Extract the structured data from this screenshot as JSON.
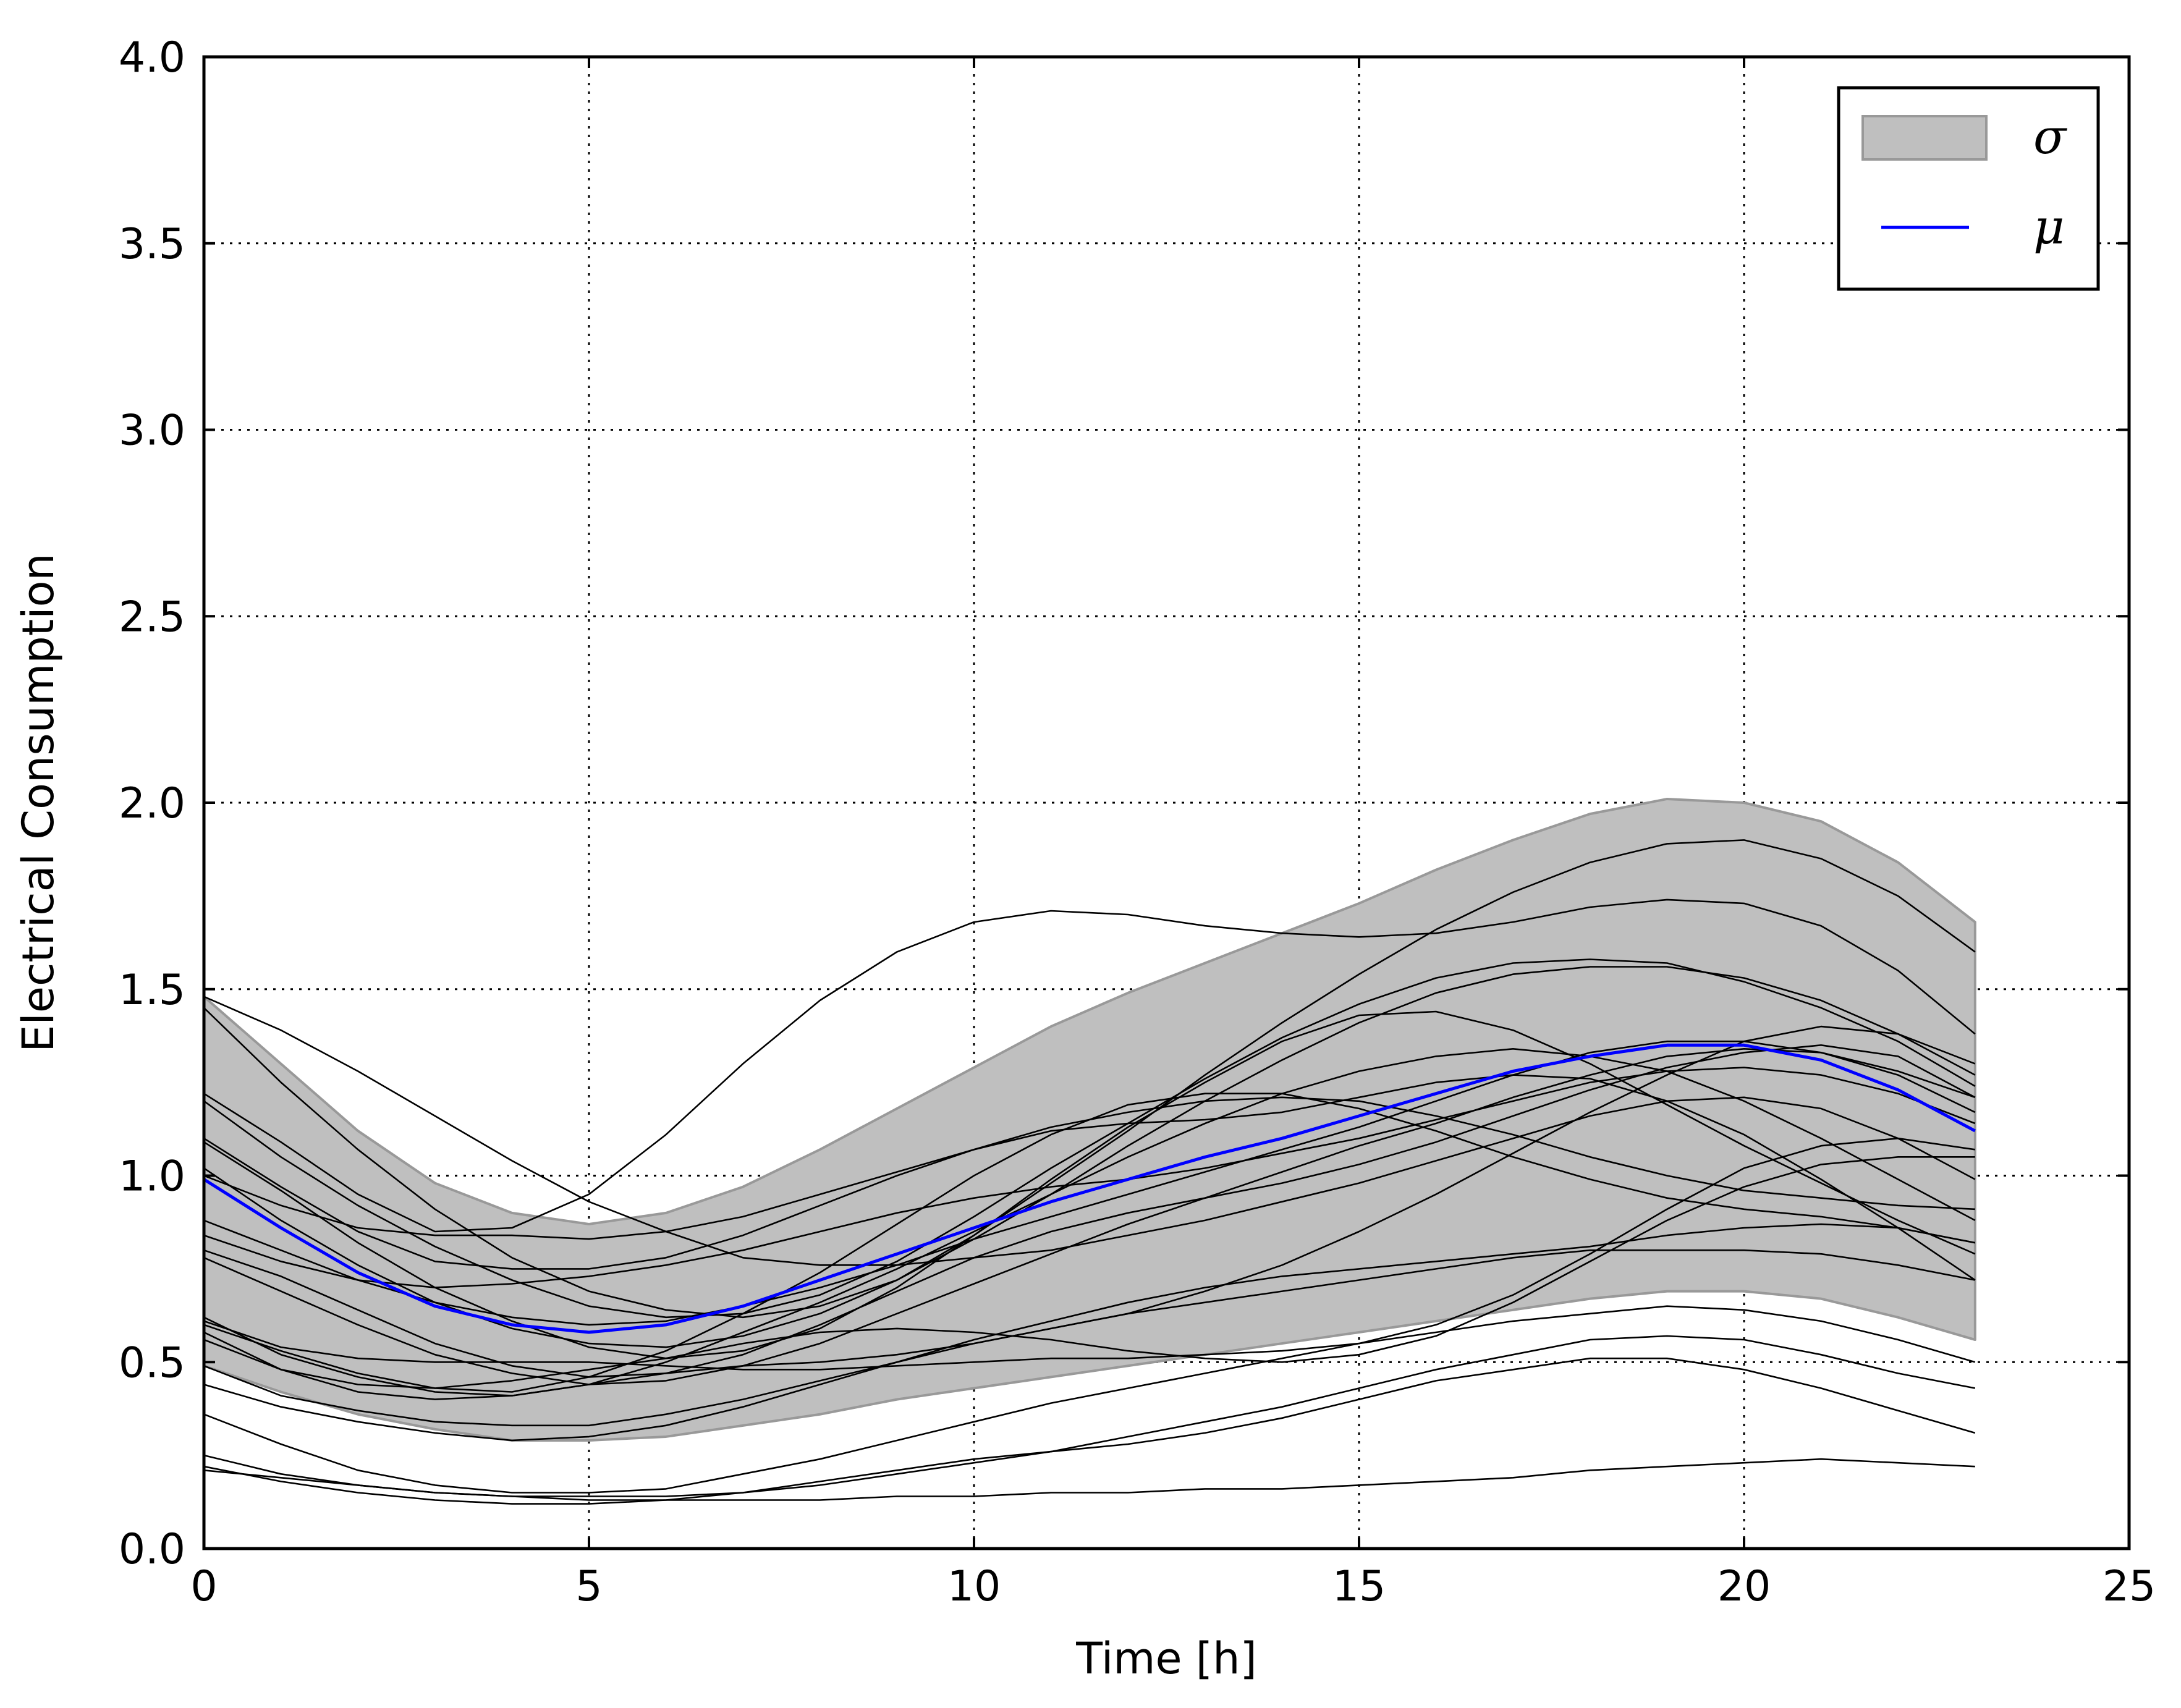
{
  "chart_data": {
    "type": "line",
    "xlabel": "Time [h]",
    "ylabel": "Electrical Consumption",
    "xlim": [
      0,
      25
    ],
    "ylim": [
      0,
      4.0
    ],
    "xticks": [
      "0",
      "5",
      "10",
      "15",
      "20",
      "25"
    ],
    "yticks": [
      "0.0",
      "0.5",
      "1.0",
      "1.5",
      "2.0",
      "2.5",
      "3.0",
      "3.5",
      "4.0"
    ],
    "grid": true,
    "legend_position": "top-right",
    "legend": [
      {
        "label": "σ",
        "kind": "band",
        "color": "#bfbfbf"
      },
      {
        "label": "μ",
        "kind": "line",
        "color": "#0000ff"
      }
    ],
    "x": [
      0,
      1,
      2,
      3,
      4,
      5,
      6,
      7,
      8,
      9,
      10,
      11,
      12,
      13,
      14,
      15,
      16,
      17,
      18,
      19,
      20,
      21,
      22,
      23
    ],
    "band": {
      "name": "σ",
      "upper": [
        1.48,
        1.3,
        1.12,
        0.98,
        0.9,
        0.87,
        0.9,
        0.97,
        1.07,
        1.18,
        1.29,
        1.4,
        1.49,
        1.57,
        1.65,
        1.73,
        1.82,
        1.9,
        1.97,
        2.01,
        2.0,
        1.95,
        1.84,
        1.68
      ],
      "lower": [
        0.49,
        0.42,
        0.36,
        0.32,
        0.29,
        0.29,
        0.3,
        0.33,
        0.36,
        0.4,
        0.43,
        0.46,
        0.49,
        0.52,
        0.55,
        0.58,
        0.61,
        0.64,
        0.67,
        0.69,
        0.69,
        0.67,
        0.62,
        0.56
      ]
    },
    "series": [
      {
        "name": "μ",
        "color": "#0000ff",
        "values": [
          0.99,
          0.86,
          0.74,
          0.65,
          0.6,
          0.58,
          0.6,
          0.65,
          0.72,
          0.79,
          0.86,
          0.93,
          0.99,
          1.05,
          1.1,
          1.16,
          1.22,
          1.28,
          1.32,
          1.35,
          1.35,
          1.31,
          1.23,
          1.12
        ]
      },
      {
        "color": "#000000",
        "values": [
          1.48,
          1.39,
          1.28,
          1.16,
          1.04,
          0.93,
          0.85,
          0.78,
          0.76,
          0.76,
          0.78,
          0.8,
          0.84,
          0.88,
          0.93,
          0.98,
          1.04,
          1.1,
          1.16,
          1.2,
          1.21,
          1.18,
          1.1,
          0.99
        ]
      },
      {
        "color": "#000000",
        "values": [
          1.45,
          1.25,
          1.07,
          0.91,
          0.78,
          0.69,
          0.64,
          0.62,
          0.65,
          0.72,
          0.84,
          0.98,
          1.12,
          1.27,
          1.41,
          1.54,
          1.66,
          1.76,
          1.84,
          1.89,
          1.9,
          1.85,
          1.75,
          1.6
        ]
      },
      {
        "color": "#000000",
        "values": [
          1.22,
          1.09,
          0.95,
          0.85,
          0.86,
          0.95,
          1.11,
          1.3,
          1.47,
          1.6,
          1.68,
          1.71,
          1.7,
          1.67,
          1.65,
          1.64,
          1.65,
          1.68,
          1.72,
          1.74,
          1.73,
          1.67,
          1.55,
          1.38
        ]
      },
      {
        "color": "#000000",
        "values": [
          1.2,
          1.05,
          0.92,
          0.81,
          0.72,
          0.65,
          0.62,
          0.63,
          0.68,
          0.77,
          0.89,
          1.02,
          1.14,
          1.26,
          1.37,
          1.46,
          1.53,
          1.57,
          1.58,
          1.57,
          1.52,
          1.45,
          1.36,
          1.24
        ]
      },
      {
        "color": "#000000",
        "values": [
          1.1,
          0.97,
          0.85,
          0.77,
          0.75,
          0.75,
          0.78,
          0.84,
          0.92,
          1.0,
          1.07,
          1.12,
          1.14,
          1.15,
          1.17,
          1.21,
          1.25,
          1.27,
          1.26,
          1.2,
          1.11,
          0.99,
          0.86,
          0.72
        ]
      },
      {
        "color": "#000000",
        "values": [
          1.09,
          0.96,
          0.82,
          0.7,
          0.61,
          0.54,
          0.51,
          0.53,
          0.59,
          0.7,
          0.84,
          0.99,
          1.13,
          1.25,
          1.36,
          1.43,
          1.44,
          1.39,
          1.3,
          1.19,
          1.08,
          0.98,
          0.88,
          0.79
        ]
      },
      {
        "color": "#000000",
        "values": [
          1.02,
          0.88,
          0.76,
          0.66,
          0.59,
          0.55,
          0.54,
          0.57,
          0.63,
          0.72,
          0.83,
          0.95,
          1.08,
          1.2,
          1.31,
          1.41,
          1.49,
          1.54,
          1.56,
          1.56,
          1.53,
          1.47,
          1.38,
          1.27
        ]
      },
      {
        "color": "#000000",
        "values": [
          1.0,
          0.92,
          0.86,
          0.84,
          0.84,
          0.83,
          0.85,
          0.89,
          0.95,
          1.01,
          1.07,
          1.13,
          1.17,
          1.2,
          1.21,
          1.2,
          1.16,
          1.11,
          1.05,
          1.0,
          0.96,
          0.94,
          0.92,
          0.91
        ]
      },
      {
        "color": "#000000",
        "values": [
          0.88,
          0.8,
          0.72,
          0.66,
          0.62,
          0.6,
          0.61,
          0.65,
          0.7,
          0.76,
          0.83,
          0.89,
          0.95,
          1.01,
          1.07,
          1.13,
          1.2,
          1.27,
          1.33,
          1.36,
          1.36,
          1.33,
          1.28,
          1.21
        ]
      },
      {
        "color": "#000000",
        "values": [
          0.84,
          0.77,
          0.72,
          0.7,
          0.71,
          0.73,
          0.76,
          0.8,
          0.85,
          0.9,
          0.94,
          0.97,
          0.99,
          1.02,
          1.06,
          1.1,
          1.15,
          1.2,
          1.25,
          1.28,
          1.29,
          1.27,
          1.22,
          1.14
        ]
      },
      {
        "color": "#000000",
        "values": [
          0.8,
          0.73,
          0.64,
          0.55,
          0.49,
          0.46,
          0.47,
          0.52,
          0.6,
          0.69,
          0.78,
          0.85,
          0.9,
          0.94,
          0.98,
          1.03,
          1.09,
          1.16,
          1.23,
          1.29,
          1.33,
          1.35,
          1.32,
          1.21
        ]
      },
      {
        "color": "#000000",
        "values": [
          0.78,
          0.69,
          0.6,
          0.52,
          0.47,
          0.44,
          0.45,
          0.49,
          0.55,
          0.63,
          0.71,
          0.79,
          0.87,
          0.94,
          1.01,
          1.08,
          1.14,
          1.21,
          1.27,
          1.32,
          1.34,
          1.33,
          1.27,
          1.17
        ]
      },
      {
        "color": "#000000",
        "values": [
          0.62,
          0.52,
          0.46,
          0.42,
          0.41,
          0.44,
          0.5,
          0.58,
          0.66,
          0.75,
          0.85,
          0.95,
          1.05,
          1.14,
          1.22,
          1.28,
          1.32,
          1.34,
          1.32,
          1.28,
          1.2,
          1.1,
          0.99,
          0.88
        ]
      },
      {
        "color": "#000000",
        "values": [
          0.6,
          0.53,
          0.47,
          0.43,
          0.42,
          0.46,
          0.53,
          0.63,
          0.74,
          0.87,
          1.0,
          1.11,
          1.19,
          1.22,
          1.22,
          1.18,
          1.12,
          1.05,
          0.99,
          0.94,
          0.91,
          0.89,
          0.86,
          0.82
        ]
      },
      {
        "color": "#000000",
        "values": [
          0.58,
          0.48,
          0.42,
          0.4,
          0.41,
          0.44,
          0.47,
          0.49,
          0.5,
          0.52,
          0.55,
          0.59,
          0.63,
          0.69,
          0.76,
          0.85,
          0.95,
          1.06,
          1.17,
          1.27,
          1.36,
          1.4,
          1.38,
          1.3
        ]
      },
      {
        "color": "#000000",
        "values": [
          0.56,
          0.48,
          0.44,
          0.43,
          0.45,
          0.48,
          0.51,
          0.55,
          0.58,
          0.59,
          0.58,
          0.56,
          0.53,
          0.51,
          0.5,
          0.52,
          0.57,
          0.66,
          0.77,
          0.88,
          0.97,
          1.03,
          1.05,
          1.05
        ]
      },
      {
        "color": "#000000",
        "values": [
          0.61,
          0.54,
          0.51,
          0.5,
          0.5,
          0.5,
          0.49,
          0.48,
          0.48,
          0.49,
          0.5,
          0.51,
          0.51,
          0.52,
          0.53,
          0.55,
          0.6,
          0.68,
          0.79,
          0.91,
          1.02,
          1.08,
          1.1,
          1.07
        ]
      },
      {
        "color": "#000000",
        "values": [
          0.49,
          0.41,
          0.37,
          0.34,
          0.33,
          0.33,
          0.36,
          0.4,
          0.45,
          0.5,
          0.55,
          0.59,
          0.63,
          0.66,
          0.69,
          0.72,
          0.75,
          0.78,
          0.8,
          0.8,
          0.8,
          0.79,
          0.76,
          0.72
        ]
      },
      {
        "color": "#000000",
        "values": [
          0.44,
          0.38,
          0.34,
          0.31,
          0.29,
          0.3,
          0.33,
          0.38,
          0.44,
          0.5,
          0.56,
          0.61,
          0.66,
          0.7,
          0.73,
          0.75,
          0.77,
          0.79,
          0.81,
          0.84,
          0.86,
          0.87,
          0.86,
          0.82
        ]
      },
      {
        "color": "#000000",
        "values": [
          0.36,
          0.28,
          0.21,
          0.17,
          0.15,
          0.15,
          0.16,
          0.2,
          0.24,
          0.29,
          0.34,
          0.39,
          0.43,
          0.47,
          0.51,
          0.55,
          0.58,
          0.61,
          0.63,
          0.65,
          0.64,
          0.61,
          0.56,
          0.5
        ]
      },
      {
        "color": "#000000",
        "values": [
          0.25,
          0.2,
          0.17,
          0.15,
          0.14,
          0.14,
          0.14,
          0.15,
          0.17,
          0.2,
          0.23,
          0.26,
          0.3,
          0.34,
          0.38,
          0.43,
          0.48,
          0.52,
          0.56,
          0.57,
          0.56,
          0.52,
          0.47,
          0.43
        ]
      },
      {
        "color": "#000000",
        "values": [
          0.22,
          0.18,
          0.15,
          0.13,
          0.12,
          0.12,
          0.13,
          0.15,
          0.18,
          0.21,
          0.24,
          0.26,
          0.28,
          0.31,
          0.35,
          0.4,
          0.45,
          0.48,
          0.51,
          0.51,
          0.48,
          0.43,
          0.37,
          0.31
        ]
      },
      {
        "color": "#000000",
        "values": [
          0.21,
          0.19,
          0.17,
          0.15,
          0.14,
          0.13,
          0.13,
          0.13,
          0.13,
          0.14,
          0.14,
          0.15,
          0.15,
          0.16,
          0.16,
          0.17,
          0.18,
          0.19,
          0.21,
          0.22,
          0.23,
          0.24,
          0.23,
          0.22
        ]
      }
    ]
  }
}
